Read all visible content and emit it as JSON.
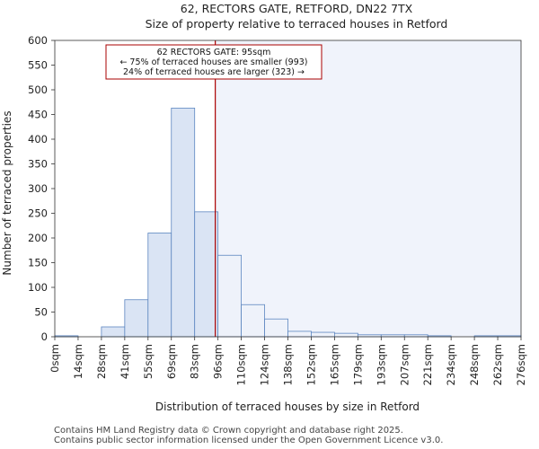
{
  "chart_data": {
    "type": "bar",
    "title": "62, RECTORS GATE, RETFORD, DN22 7TX",
    "subtitle": "Size of property relative to terraced houses in Retford",
    "xlabel": "Distribution of terraced houses by size in Retford",
    "ylabel": "Number of terraced properties",
    "ylim": [
      0,
      600
    ],
    "yticks": [
      0,
      50,
      100,
      150,
      200,
      250,
      300,
      350,
      400,
      450,
      500,
      550,
      600
    ],
    "bin_edges": [
      0,
      14,
      28,
      41,
      55,
      69,
      83,
      96,
      110,
      124,
      138,
      152,
      165,
      179,
      193,
      207,
      221,
      234,
      248,
      262,
      276
    ],
    "tick_labels": [
      "0sqm",
      "14sqm",
      "28sqm",
      "41sqm",
      "55sqm",
      "69sqm",
      "83sqm",
      "96sqm",
      "110sqm",
      "124sqm",
      "138sqm",
      "152sqm",
      "165sqm",
      "179sqm",
      "193sqm",
      "207sqm",
      "221sqm",
      "234sqm",
      "248sqm",
      "262sqm",
      "276sqm"
    ],
    "values": [
      2,
      0,
      20,
      75,
      210,
      463,
      253,
      165,
      65,
      36,
      11,
      9,
      7,
      4,
      4,
      4,
      2,
      0,
      2,
      2
    ],
    "marker": {
      "value": 95,
      "color": "#aa0000"
    },
    "annotation": {
      "line1": "62 RECTORS GATE: 95sqm",
      "line2": "← 75% of terraced houses are smaller (993)",
      "line3": "24% of terraced houses are larger (323) →"
    },
    "colors": {
      "left_bar": "#dae4f4",
      "right_bar": "#eef2fa",
      "bar_edge": "#5c86c0",
      "highlight": "#f0f3fb"
    }
  },
  "footer": {
    "line1": "Contains HM Land Registry data © Crown copyright and database right 2025.",
    "line2": "Contains public sector information licensed under the Open Government Licence v3.0."
  }
}
